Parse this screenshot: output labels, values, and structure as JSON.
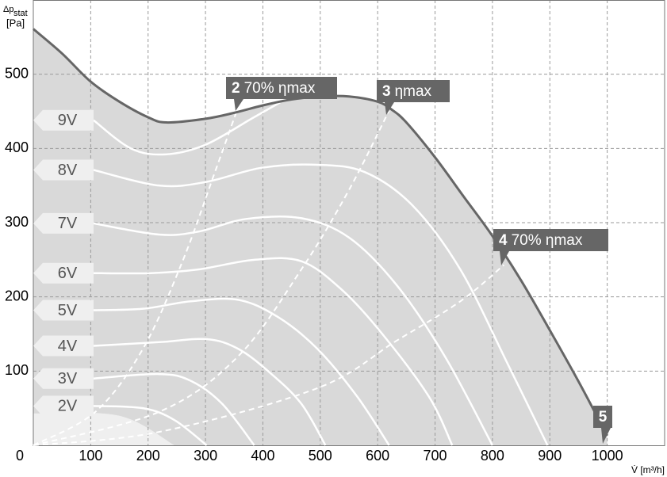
{
  "chart_data": {
    "type": "fan-curve",
    "y_label": "Δp",
    "y_label_sub": "stat",
    "y_label_unit": "[Pa]",
    "x_label": "V̇ [m³/h]",
    "xlim": [
      0,
      1100
    ],
    "ylim": [
      0,
      600
    ],
    "xticks": [
      0,
      100,
      200,
      300,
      400,
      500,
      600,
      700,
      800,
      900,
      1000
    ],
    "yticks": [
      100,
      200,
      300,
      400,
      500
    ],
    "grid": true,
    "max_curve": {
      "color": "#666666",
      "x": [
        0,
        50,
        100,
        150,
        200,
        232,
        300,
        350,
        400,
        450,
        500,
        550,
        600,
        625,
        650,
        700,
        750,
        800,
        850,
        900,
        950,
        1000
      ],
      "values": [
        561,
        528,
        490,
        463,
        442,
        435,
        440,
        448,
        458,
        466,
        470,
        470,
        463,
        452,
        435,
        388,
        335,
        282,
        222,
        155,
        86,
        13
      ]
    },
    "low_region": {
      "x": [
        0,
        149,
        246
      ],
      "values": [
        43,
        40,
        0
      ]
    },
    "series": [
      {
        "name": "9V",
        "x": [
          105,
          170,
          230,
          300,
          380,
          430
        ],
        "values": [
          438,
          400,
          392,
          405,
          440,
          462
        ]
      },
      {
        "name": "8V",
        "x": [
          105,
          219,
          302,
          398,
          495,
          578,
          661,
          744,
          827,
          896
        ],
        "values": [
          371,
          350,
          355,
          374,
          378,
          368,
          323,
          237,
          109,
          0
        ]
      },
      {
        "name": "7V",
        "x": [
          105,
          219,
          288,
          371,
          467,
          550,
          633,
          717,
          800
        ],
        "values": [
          299,
          284,
          288,
          305,
          306,
          280,
          216,
          120,
          0
        ]
      },
      {
        "name": "6V",
        "x": [
          105,
          205,
          288,
          385,
          467,
          537,
          606,
          689,
          730
        ],
        "values": [
          232,
          232,
          237,
          250,
          248,
          210,
          152,
          66,
          0
        ]
      },
      {
        "name": "5V",
        "x": [
          105,
          191,
          274,
          357,
          426,
          495,
          564,
          620
        ],
        "values": [
          182,
          184,
          194,
          196,
          173,
          130,
          66,
          0
        ]
      },
      {
        "name": "4V",
        "x": [
          105,
          219,
          302,
          357,
          412,
          467,
          509
        ],
        "values": [
          134,
          139,
          143,
          130,
          98,
          56,
          0
        ]
      },
      {
        "name": "3V",
        "x": [
          105,
          219,
          274,
          329,
          385
        ],
        "values": [
          90,
          96,
          87,
          56,
          0
        ]
      },
      {
        "name": "2V",
        "x": [
          105,
          191,
          246,
          302
        ],
        "values": [
          53,
          50,
          34,
          0
        ]
      }
    ],
    "efficiency_lines": [
      {
        "number": "2",
        "text": "70% ηmax",
        "x": [
          0,
          108,
          191,
          260,
          315,
          357
        ],
        "values": [
          0,
          45,
          130,
          248,
          365,
          456
        ]
      },
      {
        "number": "3",
        "text": "ηmax",
        "x": [
          0,
          219,
          357,
          467,
          550,
          620
        ],
        "values": [
          0,
          45,
          120,
          237,
          344,
          451
        ]
      },
      {
        "number": "4",
        "text": "70% ηmax",
        "x": [
          0,
          219,
          495,
          633,
          744,
          820
        ],
        "values": [
          0,
          18,
          77,
          141,
          194,
          243
        ]
      }
    ],
    "end_label": "5"
  }
}
